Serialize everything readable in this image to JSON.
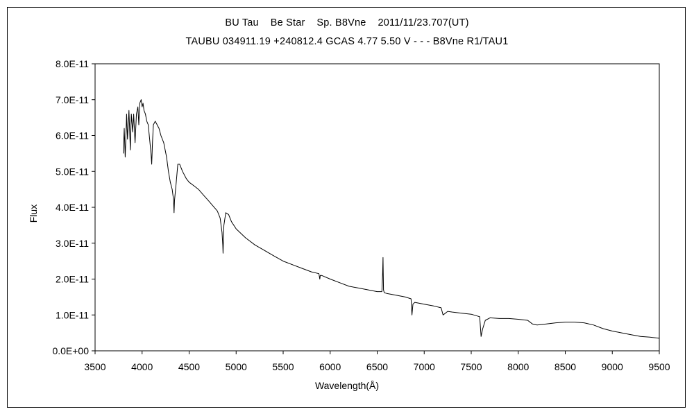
{
  "chart_data": {
    "type": "line",
    "title": "BU Tau    Be Star    Sp. B8Vne    2011/11/23.707(UT)",
    "subtitle": "TAUBU 034911.19 +240812.4 GCAS 4.77 5.50 V - - - B8Vne R1/TAU1",
    "xlabel": "Wavelength(Å)",
    "ylabel": "Flux",
    "xlim": [
      3500,
      9500
    ],
    "ylim": [
      0,
      8e-11
    ],
    "x_ticks": [
      "3500",
      "4000",
      "4500",
      "5000",
      "5500",
      "6000",
      "6500",
      "7000",
      "7500",
      "8000",
      "8500",
      "9000",
      "9500"
    ],
    "y_ticks": [
      "0.0E+00",
      "1.0E-11",
      "2.0E-11",
      "3.0E-11",
      "4.0E-11",
      "5.0E-11",
      "6.0E-11",
      "7.0E-11",
      "8.0E-11"
    ],
    "grid": false,
    "legend": "none",
    "series": [
      {
        "color": "#000000",
        "x": [
          3800,
          3810,
          3820,
          3830,
          3835,
          3845,
          3860,
          3875,
          3885,
          3900,
          3910,
          3925,
          3940,
          3955,
          3965,
          3975,
          3990,
          4000,
          4010,
          4020,
          4035,
          4050,
          4065,
          4080,
          4095,
          4102,
          4110,
          4120,
          4140,
          4160,
          4180,
          4200,
          4230,
          4260,
          4280,
          4300,
          4320,
          4335,
          4340,
          4345,
          4360,
          4380,
          4400,
          4430,
          4470,
          4500,
          4550,
          4600,
          4650,
          4700,
          4750,
          4800,
          4830,
          4850,
          4858,
          4861,
          4864,
          4870,
          4890,
          4920,
          4950,
          5000,
          5100,
          5200,
          5300,
          5400,
          5500,
          5600,
          5700,
          5800,
          5880,
          5890,
          5895,
          5910,
          6000,
          6100,
          6200,
          6300,
          6400,
          6500,
          6550,
          6558,
          6562,
          6567,
          6575,
          6600,
          6700,
          6800,
          6860,
          6870,
          6880,
          6900,
          7000,
          7100,
          7180,
          7200,
          7250,
          7300,
          7400,
          7500,
          7590,
          7605,
          7620,
          7650,
          7700,
          7800,
          7900,
          8000,
          8100,
          8150,
          8200,
          8300,
          8400,
          8500,
          8600,
          8700,
          8800,
          8900,
          9000,
          9100,
          9200,
          9300,
          9400,
          9500
        ],
        "values": [
          5.5e-11,
          6.2e-11,
          5.4e-11,
          6.1e-11,
          6.6e-11,
          5.9e-11,
          6.7e-11,
          5.6e-11,
          6.6e-11,
          6.1e-11,
          6.6e-11,
          5.8e-11,
          6.6e-11,
          6.8e-11,
          6.3e-11,
          6.9e-11,
          7e-11,
          6.8e-11,
          6.9e-11,
          6.7e-11,
          6.6e-11,
          6.4e-11,
          6.3e-11,
          5.9e-11,
          5.5e-11,
          5.2e-11,
          5.8e-11,
          6.3e-11,
          6.4e-11,
          6.3e-11,
          6.2e-11,
          6e-11,
          5.8e-11,
          5.4e-11,
          5e-11,
          4.7e-11,
          4.5e-11,
          4.2e-11,
          3.85e-11,
          4.2e-11,
          4.6e-11,
          5.2e-11,
          5.2e-11,
          5e-11,
          4.8e-11,
          4.7e-11,
          4.6e-11,
          4.5e-11,
          4.35e-11,
          4.2e-11,
          4.05e-11,
          3.9e-11,
          3.7e-11,
          3.3e-11,
          2.95e-11,
          2.72e-11,
          3e-11,
          3.5e-11,
          3.85e-11,
          3.8e-11,
          3.6e-11,
          3.4e-11,
          3.15e-11,
          2.95e-11,
          2.8e-11,
          2.65e-11,
          2.5e-11,
          2.4e-11,
          2.3e-11,
          2.2e-11,
          2.15e-11,
          2e-11,
          2.1e-11,
          2.1e-11,
          2e-11,
          1.9e-11,
          1.8e-11,
          1.75e-11,
          1.7e-11,
          1.65e-11,
          1.65e-11,
          2.2e-11,
          2.6e-11,
          1.7e-11,
          1.62e-11,
          1.6e-11,
          1.55e-11,
          1.5e-11,
          1.45e-11,
          1e-11,
          1.3e-11,
          1.35e-11,
          1.3e-11,
          1.25e-11,
          1.2e-11,
          1e-11,
          1.1e-11,
          1.08e-11,
          1.05e-11,
          1.02e-11,
          9.5e-12,
          4e-12,
          6e-12,
          8.5e-12,
          9.2e-12,
          9e-12,
          9e-12,
          8.8e-12,
          8.5e-12,
          7.5e-12,
          7.2e-12,
          7.5e-12,
          7.8e-12,
          8e-12,
          8e-12,
          7.8e-12,
          7.2e-12,
          6.2e-12,
          5.5e-12,
          5e-12,
          4.5e-12,
          4e-12,
          3.8e-12,
          3.5e-12
        ]
      }
    ]
  }
}
